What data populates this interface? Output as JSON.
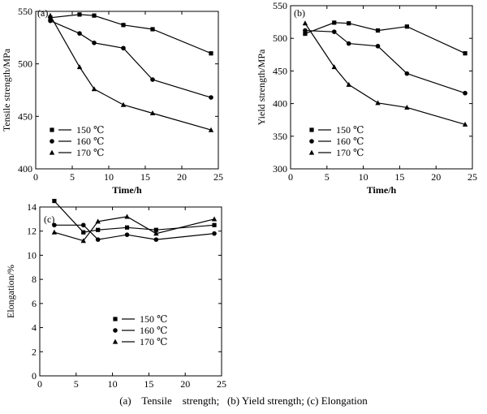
{
  "caption": "(a)    Tensile    strength;   (b) Yield strength; (c) Elongation",
  "chart_data": [
    {
      "type": "line",
      "panel_label": "(a)",
      "xlabel": "Time/h",
      "ylabel": "Tensile strength/MPa",
      "xlim": [
        0,
        25
      ],
      "ylim": [
        400,
        550
      ],
      "xticks": [
        0,
        5,
        10,
        15,
        20,
        25
      ],
      "yticks": [
        400,
        450,
        500,
        550
      ],
      "legend_position": "middle-left",
      "series": [
        {
          "name": "150 ℃",
          "marker": "square",
          "x": [
            2,
            6,
            8,
            12,
            16,
            24
          ],
          "y": [
            544,
            547,
            546,
            537,
            533,
            510
          ]
        },
        {
          "name": "160 ℃",
          "marker": "circle",
          "x": [
            2,
            6,
            8,
            12,
            16,
            24
          ],
          "y": [
            541,
            529,
            520,
            515,
            485,
            468
          ]
        },
        {
          "name": "170 ℃",
          "marker": "triangle",
          "x": [
            2,
            6,
            8,
            12,
            16,
            24
          ],
          "y": [
            546,
            497,
            476,
            461,
            453,
            437
          ]
        }
      ]
    },
    {
      "type": "line",
      "panel_label": "(b)",
      "xlabel": "Time/h",
      "ylabel": "Yield strength/MPa",
      "xlim": [
        0,
        25
      ],
      "ylim": [
        300,
        550
      ],
      "xticks": [
        0,
        5,
        10,
        15,
        20,
        25
      ],
      "yticks": [
        300,
        350,
        400,
        450,
        500,
        550
      ],
      "legend_position": "bottom-left",
      "series": [
        {
          "name": "150 ℃",
          "marker": "square",
          "x": [
            2,
            6,
            8,
            12,
            16,
            24
          ],
          "y": [
            507,
            524,
            523,
            512,
            518,
            477
          ]
        },
        {
          "name": "160 ℃",
          "marker": "circle",
          "x": [
            2,
            6,
            8,
            12,
            16,
            24
          ],
          "y": [
            512,
            510,
            492,
            488,
            446,
            416
          ]
        },
        {
          "name": "170 ℃",
          "marker": "triangle",
          "x": [
            2,
            6,
            8,
            12,
            16,
            24
          ],
          "y": [
            523,
            456,
            429,
            401,
            394,
            368
          ]
        }
      ]
    },
    {
      "type": "line",
      "panel_label": "(c)",
      "xlabel": "Time/h",
      "ylabel": "Elongation/%",
      "xlim": [
        0,
        25
      ],
      "ylim": [
        0,
        14
      ],
      "xticks": [
        0,
        5,
        10,
        15,
        20,
        25
      ],
      "yticks": [
        0,
        2,
        4,
        6,
        8,
        10,
        12,
        14
      ],
      "legend_position": "bottom-left",
      "series": [
        {
          "name": "150 ℃",
          "marker": "square",
          "x": [
            2,
            6,
            8,
            12,
            16,
            24
          ],
          "y": [
            14.5,
            11.9,
            12.1,
            12.3,
            12.1,
            12.5
          ]
        },
        {
          "name": "160 ℃",
          "marker": "circle",
          "x": [
            2,
            6,
            8,
            12,
            16,
            24
          ],
          "y": [
            12.5,
            12.5,
            11.3,
            11.7,
            11.3,
            11.8
          ]
        },
        {
          "name": "170 ℃",
          "marker": "triangle",
          "x": [
            2,
            6,
            8,
            12,
            16,
            24
          ],
          "y": [
            11.9,
            11.2,
            12.8,
            13.2,
            11.8,
            13.0
          ]
        }
      ]
    }
  ]
}
